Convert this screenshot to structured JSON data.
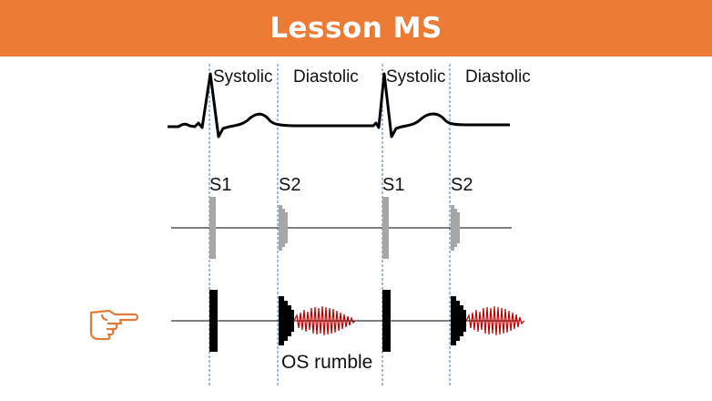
{
  "title": "Lesson MS",
  "phase_labels": [
    "Systolic",
    "Diastolic",
    "Systolic",
    "Diastolic"
  ],
  "sound_labels": [
    "S1",
    "S2",
    "S1",
    "S2"
  ],
  "murmur_label": "OS rumble",
  "colors": {
    "title_bg": "#ec7b36",
    "title_text": "#ffffff",
    "normal_sound": "#a6a6a6",
    "ms_sound": "#000000",
    "rumble": "#c00000",
    "guide_line": "#4a7ab0",
    "pointer_icon": "#e07b39"
  },
  "icons": {
    "pointer": "pointing-hand-icon"
  }
}
